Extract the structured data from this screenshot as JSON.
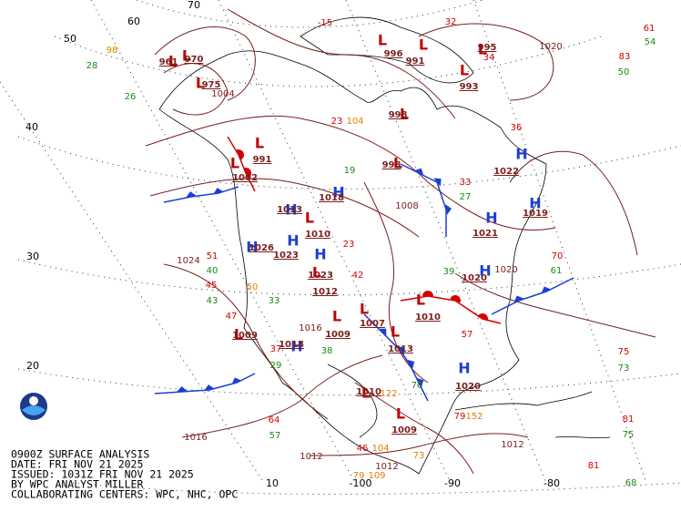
{
  "caption": [
    "0900Z SURFACE ANALYSIS",
    "DATE: FRI NOV 21 2025",
    "ISSUED: 1031Z FRI NOV 21 2025",
    "BY WPC ANALYST MILLER",
    "COLLABORATING CENTERS: WPC, NHC, OPC"
  ],
  "latitude_labels": [
    "70",
    "60",
    "50",
    "40",
    "30",
    "20",
    "10"
  ],
  "longitude_labels": [
    "-100",
    "-90",
    "-80"
  ],
  "pressure_centers": [
    {
      "letter": "H",
      "value": 1018
    },
    {
      "letter": "H",
      "value": 1013
    },
    {
      "letter": "L",
      "value": 1010
    },
    {
      "letter": "H",
      "value": 1026
    },
    {
      "letter": "H",
      "value": 1023
    },
    {
      "letter": "H",
      "value": 1023
    },
    {
      "letter": "L",
      "value": 1012
    },
    {
      "letter": "H",
      "value": 1018
    },
    {
      "letter": "L",
      "value": 1009
    },
    {
      "letter": "L",
      "value": 1007
    },
    {
      "letter": "L",
      "value": 1010
    },
    {
      "letter": "L",
      "value": 1013
    },
    {
      "letter": "L",
      "value": 1010
    },
    {
      "letter": "L",
      "value": 1009
    },
    {
      "letter": "H",
      "value": 1020
    },
    {
      "letter": "H",
      "value": 1022
    },
    {
      "letter": "H",
      "value": 1021
    },
    {
      "letter": "H",
      "value": 1020
    },
    {
      "letter": "H",
      "value": 1019
    },
    {
      "letter": "L",
      "value": 1009
    },
    {
      "letter": "L",
      "value": 1002
    },
    {
      "letter": "L",
      "value": 991
    },
    {
      "letter": "L",
      "value": 998
    },
    {
      "letter": "L",
      "value": 998
    },
    {
      "letter": "L",
      "value": 996
    },
    {
      "letter": "L",
      "value": 991
    },
    {
      "letter": "L",
      "value": 995
    },
    {
      "letter": "L",
      "value": 993
    },
    {
      "letter": "L",
      "value": 975
    },
    {
      "letter": "L",
      "value": 970
    },
    {
      "letter": "L",
      "value": 961
    }
  ],
  "isobar_labels": [
    1024,
    1016,
    1012,
    1012,
    1020,
    1008,
    1020,
    1016,
    1012,
    1004
  ],
  "station_values": {
    "red": [
      -15,
      32,
      23,
      33,
      23,
      51,
      45,
      47,
      42,
      37,
      57,
      70,
      75,
      81,
      81,
      61,
      83,
      79,
      36,
      34,
      64,
      46
    ],
    "green": [
      54,
      50,
      28,
      26,
      19,
      40,
      43,
      33,
      39,
      61,
      57,
      70,
      29,
      38,
      73,
      75,
      68,
      27
    ],
    "orange": [
      98,
      104,
      104,
      109,
      73,
      152,
      79,
      122,
      50
    ]
  }
}
